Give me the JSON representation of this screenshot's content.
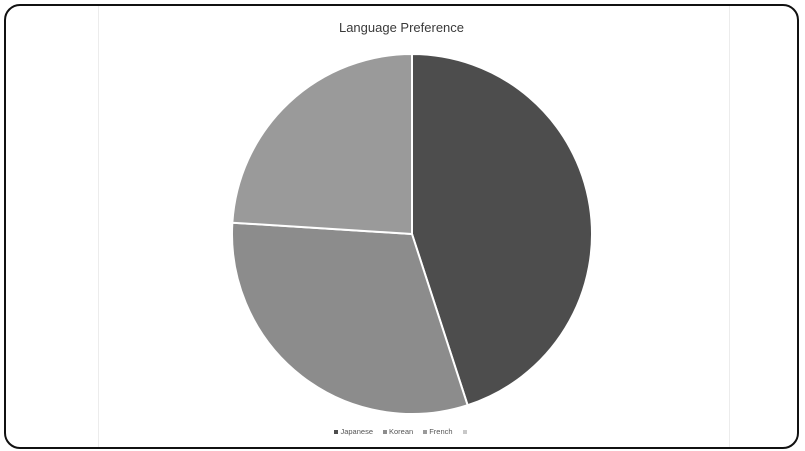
{
  "chart_data": {
    "type": "pie",
    "title": "Language Preference",
    "categories": [
      "Japanese",
      "Korean",
      "French",
      ""
    ],
    "values": [
      45,
      31,
      24,
      0
    ],
    "colors": [
      "#4d4d4d",
      "#8c8c8c",
      "#9a9a9a",
      "#c8c8c8"
    ],
    "legend_position": "bottom"
  }
}
